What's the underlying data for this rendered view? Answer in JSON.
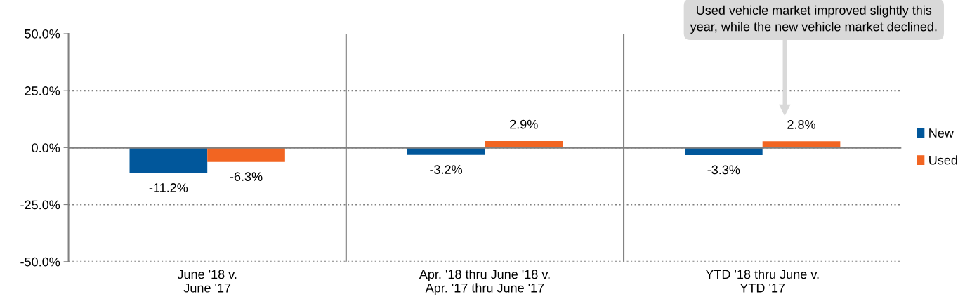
{
  "chart_data": {
    "type": "bar",
    "categories": [
      "June '18 v.\nJune '17",
      "Apr. '18 thru June '18 v.\nApr. '17 thru June '17",
      "YTD '18 thru June v.\nYTD '17"
    ],
    "series": [
      {
        "name": "New",
        "color": "#01579b",
        "values": [
          -11.2,
          -3.2,
          -3.3
        ],
        "value_labels": [
          "-11.2%",
          "-3.2%",
          "-3.3%"
        ]
      },
      {
        "name": "Used",
        "color": "#f26522",
        "values": [
          -6.3,
          2.9,
          2.8
        ],
        "value_labels": [
          "-6.3%",
          "2.9%",
          "2.8%"
        ]
      }
    ],
    "ylim": [
      -50,
      50
    ],
    "yticks": [
      {
        "value": -50,
        "label": "-50.0%"
      },
      {
        "value": -25,
        "label": "-25.0%"
      },
      {
        "value": 0,
        "label": "0.0%"
      },
      {
        "value": 25,
        "label": "25.0%"
      },
      {
        "value": 50,
        "label": "50.0%"
      }
    ],
    "grid": "y",
    "legend": "right",
    "annotations": [
      "Used vehicle market improved slightly this\nyear, while the new vehicle market declined."
    ]
  }
}
